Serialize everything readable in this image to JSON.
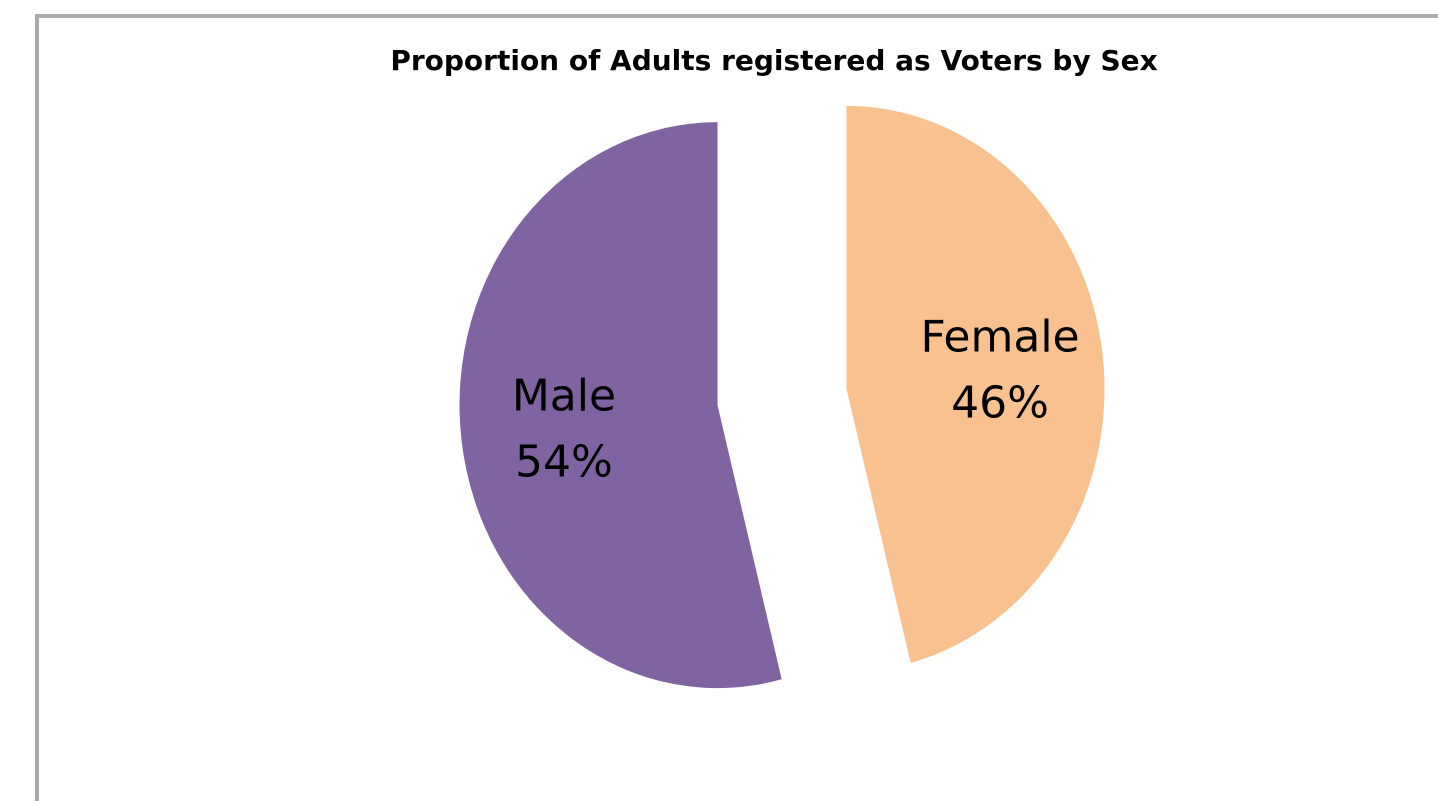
{
  "chart_data": {
    "type": "pie",
    "title": "Proportion of Adults registered as Voters by Sex",
    "categories": [
      "Female",
      "Male"
    ],
    "values": [
      46,
      54
    ],
    "value_labels": [
      "46%",
      "54%"
    ],
    "colors": [
      "#f9c190",
      "#8064a2"
    ]
  }
}
